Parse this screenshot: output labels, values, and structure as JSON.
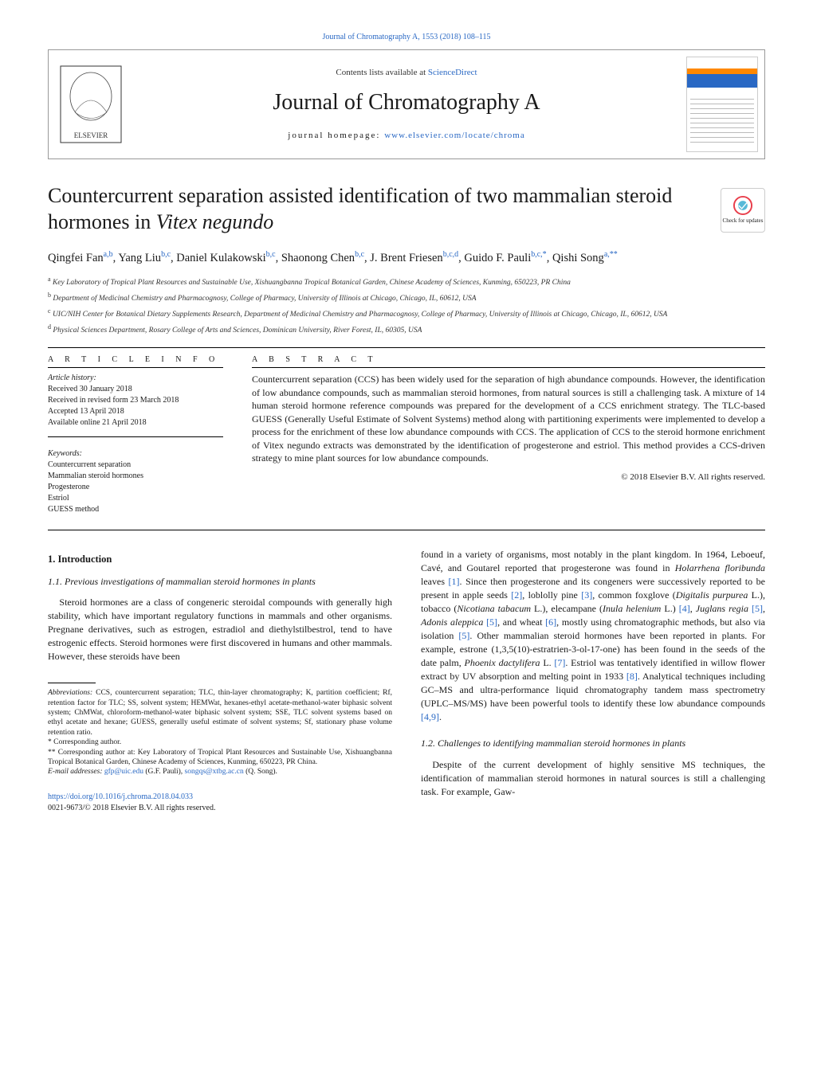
{
  "top_link": "Journal of Chromatography A, 1553 (2018) 108–115",
  "header": {
    "contents_prefix": "Contents lists available at ",
    "contents_link": "ScienceDirect",
    "journal_name": "Journal of Chromatography A",
    "homepage_label": "journal homepage: ",
    "homepage_url": "www.elsevier.com/locate/chroma"
  },
  "title_parts": {
    "pre": "Countercurrent separation assisted identification of two mammalian steroid hormones in ",
    "italic": "Vitex negundo"
  },
  "check_updates_label": "Check for updates",
  "authors_html": "Qingfei Fan<sup>a,b</sup>, Yang Liu<sup>b,c</sup>, Daniel Kulakowski<sup>b,c</sup>, Shaonong Chen<sup>b,c</sup>, J. Brent Friesen<sup>b,c,d</sup>, Guido F. Pauli<sup>b,c,*</sup>, Qishi Song<sup>a,**</sup>",
  "affiliations": [
    {
      "sup": "a",
      "text": "Key Laboratory of Tropical Plant Resources and Sustainable Use, Xishuangbanna Tropical Botanical Garden, Chinese Academy of Sciences, Kunming, 650223, PR China"
    },
    {
      "sup": "b",
      "text": "Department of Medicinal Chemistry and Pharmacognosy, College of Pharmacy, University of Illinois at Chicago, Chicago, IL, 60612, USA"
    },
    {
      "sup": "c",
      "text": "UIC/NIH Center for Botanical Dietary Supplements Research, Department of Medicinal Chemistry and Pharmacognosy, College of Pharmacy, University of Illinois at Chicago, Chicago, IL, 60612, USA"
    },
    {
      "sup": "d",
      "text": "Physical Sciences Department, Rosary College of Arts and Sciences, Dominican University, River Forest, IL, 60305, USA"
    }
  ],
  "article_info_label": "a r t i c l e   i n f o",
  "abstract_label": "a b s t r a c t",
  "history_label": "Article history:",
  "history": [
    "Received 30 January 2018",
    "Received in revised form 23 March 2018",
    "Accepted 13 April 2018",
    "Available online 21 April 2018"
  ],
  "keywords_label": "Keywords:",
  "keywords": [
    "Countercurrent separation",
    "Mammalian steroid hormones",
    "Progesterone",
    "Estriol",
    "GUESS method"
  ],
  "abstract": "Countercurrent separation (CCS) has been widely used for the separation of high abundance compounds. However, the identification of low abundance compounds, such as mammalian steroid hormones, from natural sources is still a challenging task. A mixture of 14 human steroid hormone reference compounds was prepared for the development of a CCS enrichment strategy. The TLC-based GUESS (Generally Useful Estimate of Solvent Systems) method along with partitioning experiments were implemented to develop a process for the enrichment of these low abundance compounds with CCS. The application of CCS to the steroid hormone enrichment of Vitex negundo extracts was demonstrated by the identification of progesterone and estriol. This method provides a CCS-driven strategy to mine plant sources for low abundance compounds.",
  "copyright": "© 2018 Elsevier B.V. All rights reserved.",
  "body": {
    "sec1": "1.  Introduction",
    "sec11": "1.1.  Previous investigations of mammalian steroid hormones in plants",
    "p1": "Steroid hormones are a class of congeneric steroidal compounds with generally high stability, which have important regulatory functions in mammals and other organisms. Pregnane derivatives, such as estrogen, estradiol and diethylstilbestrol, tend to have estrogenic effects. Steroid hormones were first discovered in humans and other mammals. However, these steroids have been",
    "p2_pre": "found in a variety of organisms, most notably in the plant kingdom. In 1964, Leboeuf, Cavé, and Goutarel reported that progesterone was found in ",
    "p2_sp1": "Holarrhena floribunda",
    "p2_mid1": " leaves ",
    "p2_ref1": "[1]",
    "p2_mid2": ". Since then progesterone and its congeners were successively reported to be present in apple seeds ",
    "p2_ref2": "[2]",
    "p2_mid3": ", loblolly pine ",
    "p2_ref3": "[3]",
    "p2_mid4": ", common foxglove (",
    "p2_sp2": "Digitalis purpurea",
    "p2_mid5": " L.), tobacco (",
    "p2_sp3": "Nicotiana tabacum",
    "p2_mid6": " L.), elecampane (",
    "p2_sp4": "Inula helenium",
    "p2_mid7": " L.) ",
    "p2_ref4": "[4]",
    "p2_mid8": ", ",
    "p2_sp5": "Juglans regia",
    "p2_mid9": " ",
    "p2_ref5": "[5]",
    "p2_mid10": ", ",
    "p2_sp6": "Adonis aleppica",
    "p2_mid11": " ",
    "p2_ref6": "[5]",
    "p2_mid12": ", and wheat ",
    "p2_ref7": "[6]",
    "p2_mid13": ", mostly using chromatographic methods, but also via isolation ",
    "p2_ref8": "[5]",
    "p2_mid14": ". Other mammalian steroid hormones have been reported in plants. For example, estrone (1,3,5(10)-estratrien-3-ol-17-one) has been found in the seeds of the date palm, ",
    "p2_sp7": "Phoenix dactylifera",
    "p2_mid15": " L. ",
    "p2_ref9": "[7]",
    "p2_mid16": ". Estriol was tentatively identified in willow flower extract by UV absorption and melting point in 1933 ",
    "p2_ref10": "[8]",
    "p2_mid17": ". Analytical techniques including GC–MS and ultra-performance liquid chromatography tandem mass spectrometry (UPLC–MS/MS) have been powerful tools to identify these low abundance compounds ",
    "p2_ref11": "[4,9]",
    "p2_end": ".",
    "sec12": "1.2.  Challenges to identifying mammalian steroid hormones in plants",
    "p3": "Despite of the current development of highly sensitive MS techniques, the identification of mammalian steroid hormones in natural sources is still a challenging task. For example, Gaw-"
  },
  "footnotes": {
    "abbr_label": "Abbreviations:",
    "abbr": "  CCS, countercurrent separation; TLC, thin-layer chromatography; K, partition coefficient; Rf, retention factor for TLC; SS, solvent system; HEMWat, hexanes-ethyl acetate-methanol-water biphasic solvent system; ChMWat, chloroform-methanol-water biphasic solvent system; SSE, TLC solvent systems based on ethyl acetate and hexane; GUESS, generally useful estimate of solvent systems; Sf, stationary phase volume retention ratio.",
    "corr1": "* Corresponding author.",
    "corr2": "** Corresponding author at: Key Laboratory of Tropical Plant Resources and Sustainable Use, Xishuangbanna Tropical Botanical Garden, Chinese Academy of Sciences, Kunming, 650223, PR China.",
    "email_label": "E-mail addresses: ",
    "email1": "gfp@uic.edu",
    "email1_who": " (G.F. Pauli), ",
    "email2": "songqs@xtbg.ac.cn",
    "email2_who": " (Q. Song)."
  },
  "doi": {
    "url": "https://doi.org/10.1016/j.chroma.2018.04.033",
    "line2": "0021-9673/© 2018 Elsevier B.V. All rights reserved."
  },
  "colors": {
    "link": "#2968c4",
    "orange": "#ff8800",
    "rule": "#000000"
  }
}
